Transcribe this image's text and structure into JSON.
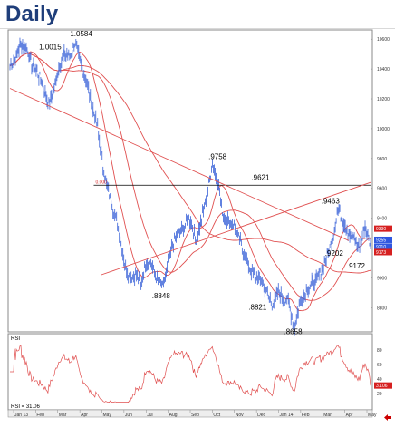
{
  "header": {
    "title": "Daily"
  },
  "nav": {
    "arrow_icon": "back-arrow-icon",
    "arrow_color": "#cc0000"
  },
  "colors": {
    "price": "#3b63d8",
    "ma": "#e05050",
    "rsi": "#e05050",
    "support": "#000000",
    "tag_red": "#d62020",
    "tag_blue": "#2f57e0"
  },
  "chart_data": [
    {
      "type": "line",
      "panel": "price",
      "y_scale": "linear",
      "ylim": [
        8650,
        10650
      ],
      "y_ticks": [
        8800,
        9000,
        9200,
        9400,
        9600,
        9800,
        10000,
        10200,
        10400,
        10600
      ],
      "x_ticks": [
        "Jan 13",
        "Feb",
        "Mar",
        "Apr",
        "May",
        "Jun",
        "Jul",
        "Aug",
        "Sep",
        "Oct",
        "Nov",
        "Dec",
        "Jan 14",
        "Feb",
        "Mar",
        "Apr",
        "May"
      ],
      "grid": false,
      "series": [
        {
          "role": "price",
          "x": [
            0,
            6,
            12,
            18,
            24,
            30,
            36,
            42,
            48,
            54,
            60,
            66,
            72,
            78,
            84,
            90,
            96,
            102,
            108,
            114,
            120,
            126,
            132,
            138,
            144,
            150,
            156,
            162,
            168,
            174,
            180,
            186,
            192,
            198,
            204,
            210,
            216,
            222,
            228,
            234,
            240,
            246,
            252,
            258,
            264,
            270,
            276,
            282,
            288,
            294,
            300,
            306,
            312,
            318,
            324,
            330,
            336,
            342,
            348,
            354,
            360,
            366,
            372,
            378,
            384,
            390,
            396
          ],
          "values": [
            10420,
            10480,
            10560,
            10550,
            10430,
            10380,
            10300,
            10160,
            10250,
            10420,
            10500,
            10480,
            10584,
            10420,
            10330,
            10150,
            10020,
            9750,
            9580,
            9450,
            9300,
            9100,
            9000,
            9020,
            8950,
            9120,
            9080,
            8980,
            8940,
            9100,
            9250,
            9300,
            9350,
            9400,
            9250,
            9380,
            9550,
            9758,
            9650,
            9420,
            9380,
            9350,
            9250,
            9150,
            9050,
            9000,
            8980,
            8900,
            8821,
            8900,
            8860,
            8840,
            8658,
            8820,
            8900,
            8950,
            8980,
            9050,
            9150,
            9250,
            9463,
            9380,
            9300,
            9250,
            9202,
            9350,
            9220
          ]
        },
        {
          "role": "moving-average"
        },
        {
          "role": "moving-average"
        },
        {
          "role": "moving-average"
        }
      ],
      "annotations": [
        "1.0584",
        "1.0015",
        ".9758",
        ".9621",
        ".9463",
        ".9202",
        ".9172",
        ".8848",
        ".8821",
        ".8658"
      ],
      "reference_line": {
        "value": 9621,
        "label": "0.000"
      },
      "right_tags": [
        {
          "value": 9330,
          "text": "9330",
          "style": "red"
        },
        {
          "value": 9255,
          "text": "9255",
          "style": "blue"
        },
        {
          "value": 9210,
          "text": "9210",
          "style": "blue"
        },
        {
          "value": 9173,
          "text": "9173",
          "style": "red"
        }
      ]
    },
    {
      "type": "line",
      "panel": "rsi",
      "label": "RSI",
      "ylim": [
        0,
        100
      ],
      "y_ticks": [
        20,
        40,
        60,
        80
      ],
      "readout": "31.06",
      "legend_text": "RSI = 31.06",
      "grid": false
    }
  ]
}
